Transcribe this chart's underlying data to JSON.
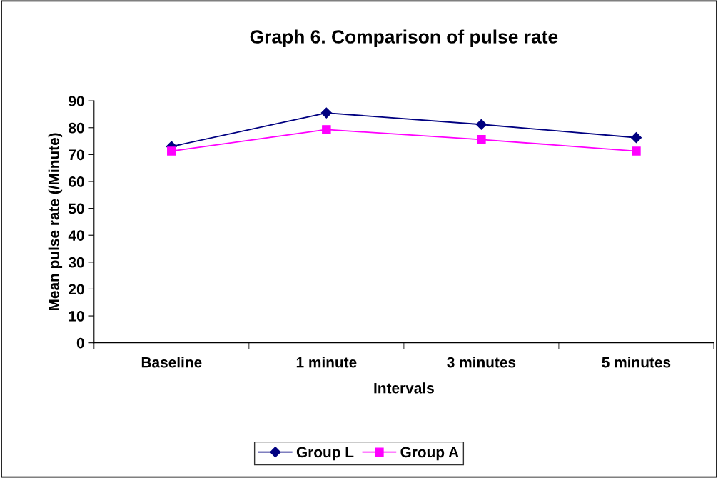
{
  "chart_data": {
    "type": "line",
    "title": "Graph 6. Comparison of pulse rate",
    "xlabel": "Intervals",
    "ylabel": "Mean pulse rate (/Minute)",
    "categories": [
      "Baseline",
      "1 minute",
      "3 minutes",
      "5 minutes"
    ],
    "series": [
      {
        "name": "Group L",
        "color": "#000080",
        "values": [
          73,
          85.5,
          81.2,
          76.3
        ],
        "marker": "diamond"
      },
      {
        "name": "Group A",
        "color": "#ff00ff",
        "values": [
          71.3,
          79.3,
          75.6,
          71.3
        ],
        "marker": "square"
      }
    ],
    "ylim": [
      0,
      90
    ],
    "yticks": [
      0,
      10,
      20,
      30,
      40,
      50,
      60,
      70,
      80,
      90
    ],
    "grid": false,
    "legend": "bottom",
    "line_style": "solid"
  }
}
